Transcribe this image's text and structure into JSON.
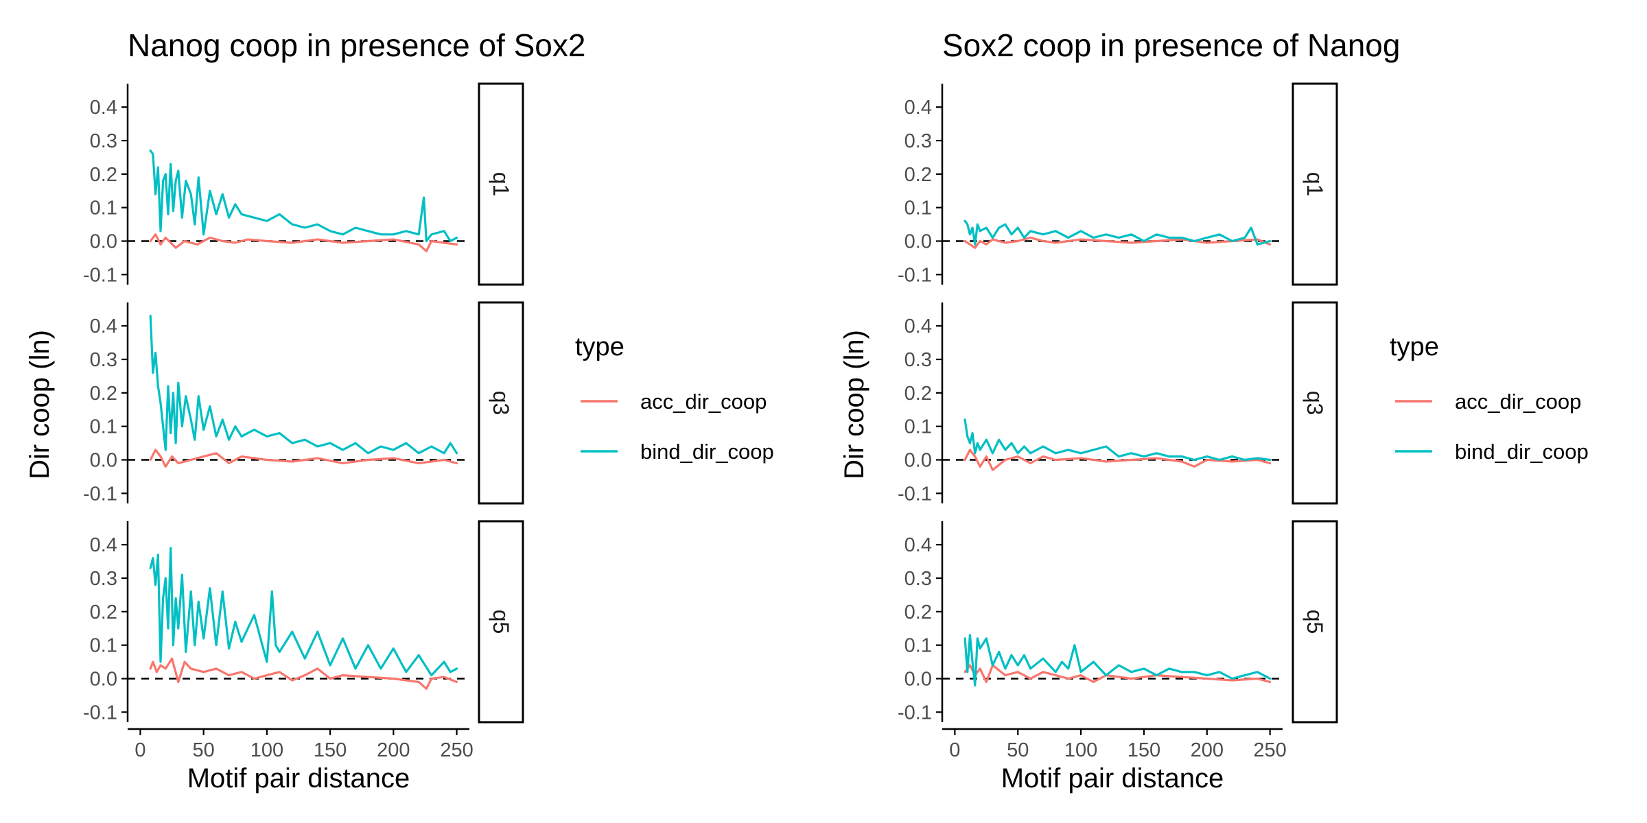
{
  "colors": {
    "acc_dir_coop": "#F8766D",
    "bind_dir_coop": "#00BFC4",
    "axis": "#000000",
    "tick_label": "#4d4d4d"
  },
  "chart_data": [
    {
      "type": "line",
      "title": "Nanog coop in presence of Sox2",
      "xlabel": "Motif pair distance",
      "ylabel": "Dir coop (ln)",
      "xlim": [
        -10,
        260
      ],
      "ylim": [
        -0.13,
        0.47
      ],
      "xticks": [
        "0",
        "50",
        "100",
        "150",
        "200",
        "250"
      ],
      "yticks": [
        "-0.1",
        "0.0",
        "0.1",
        "0.2",
        "0.3",
        "0.4"
      ],
      "reference_line": {
        "y": 0,
        "style": "dashed"
      },
      "grid": false,
      "legend": {
        "title": "type",
        "position": "right",
        "entries": [
          "acc_dir_coop",
          "bind_dir_coop"
        ]
      },
      "panels": [
        {
          "label": "q1",
          "series": [
            {
              "name": "acc_dir_coop",
              "x": [
                8,
                12,
                16,
                20,
                28,
                35,
                45,
                55,
                65,
                75,
                85,
                100,
                120,
                140,
                160,
                180,
                200,
                220,
                226,
                230,
                240,
                250
              ],
              "y": [
                0.0,
                0.02,
                -0.01,
                0.01,
                -0.02,
                0.0,
                -0.01,
                0.01,
                0.0,
                -0.005,
                0.005,
                0.0,
                -0.005,
                0.005,
                -0.005,
                0.0,
                0.005,
                -0.01,
                -0.03,
                0.0,
                -0.005,
                -0.01
              ]
            },
            {
              "name": "bind_dir_coop",
              "x": [
                8,
                10,
                12,
                14,
                16,
                18,
                20,
                22,
                24,
                26,
                28,
                30,
                33,
                36,
                40,
                43,
                46,
                50,
                55,
                60,
                65,
                70,
                75,
                80,
                90,
                100,
                110,
                120,
                130,
                140,
                150,
                160,
                170,
                180,
                190,
                200,
                210,
                220,
                224,
                226,
                230,
                240,
                245,
                250
              ],
              "y": [
                0.27,
                0.26,
                0.14,
                0.22,
                0.03,
                0.18,
                0.2,
                0.08,
                0.23,
                0.09,
                0.18,
                0.21,
                0.07,
                0.18,
                0.14,
                0.05,
                0.19,
                0.02,
                0.15,
                0.08,
                0.14,
                0.07,
                0.11,
                0.08,
                0.07,
                0.06,
                0.08,
                0.05,
                0.04,
                0.05,
                0.03,
                0.02,
                0.04,
                0.03,
                0.02,
                0.02,
                0.03,
                0.02,
                0.13,
                0.0,
                0.02,
                0.03,
                0.0,
                0.01
              ]
            }
          ]
        },
        {
          "label": "q3",
          "series": [
            {
              "name": "acc_dir_coop",
              "x": [
                8,
                12,
                16,
                20,
                25,
                30,
                40,
                50,
                60,
                70,
                80,
                100,
                120,
                140,
                160,
                180,
                200,
                220,
                240,
                250
              ],
              "y": [
                0.0,
                0.03,
                0.01,
                -0.02,
                0.01,
                -0.01,
                0.0,
                0.01,
                0.02,
                -0.01,
                0.01,
                0.0,
                -0.005,
                0.005,
                -0.01,
                0.0,
                0.005,
                -0.01,
                0.0,
                -0.01
              ]
            },
            {
              "name": "bind_dir_coop",
              "x": [
                8,
                10,
                12,
                14,
                16,
                18,
                20,
                22,
                24,
                26,
                28,
                30,
                33,
                36,
                40,
                43,
                46,
                50,
                55,
                60,
                65,
                70,
                75,
                80,
                90,
                100,
                110,
                120,
                130,
                140,
                150,
                160,
                170,
                180,
                190,
                200,
                210,
                220,
                230,
                240,
                245,
                250
              ],
              "y": [
                0.43,
                0.26,
                0.32,
                0.22,
                0.17,
                0.1,
                0.03,
                0.22,
                0.08,
                0.2,
                0.05,
                0.23,
                0.1,
                0.19,
                0.12,
                0.06,
                0.19,
                0.09,
                0.16,
                0.07,
                0.12,
                0.06,
                0.1,
                0.07,
                0.09,
                0.07,
                0.08,
                0.05,
                0.06,
                0.04,
                0.05,
                0.03,
                0.05,
                0.02,
                0.04,
                0.03,
                0.05,
                0.02,
                0.04,
                0.02,
                0.05,
                0.02
              ]
            }
          ]
        },
        {
          "label": "q5",
          "series": [
            {
              "name": "acc_dir_coop",
              "x": [
                8,
                10,
                13,
                16,
                20,
                25,
                30,
                35,
                40,
                50,
                60,
                70,
                80,
                90,
                100,
                110,
                120,
                130,
                140,
                150,
                160,
                180,
                200,
                220,
                226,
                230,
                240,
                250
              ],
              "y": [
                0.03,
                0.05,
                0.02,
                0.04,
                0.03,
                0.06,
                -0.01,
                0.05,
                0.03,
                0.02,
                0.03,
                0.01,
                0.02,
                0.0,
                0.01,
                0.02,
                -0.005,
                0.01,
                0.03,
                0.0,
                0.01,
                0.005,
                0.0,
                -0.01,
                -0.03,
                0.0,
                0.005,
                -0.01
              ]
            },
            {
              "name": "bind_dir_coop",
              "x": [
                8,
                10,
                12,
                14,
                16,
                18,
                20,
                22,
                24,
                26,
                28,
                30,
                33,
                36,
                40,
                43,
                46,
                50,
                55,
                60,
                65,
                70,
                75,
                80,
                90,
                100,
                104,
                107,
                110,
                120,
                130,
                140,
                150,
                160,
                170,
                180,
                190,
                200,
                210,
                220,
                230,
                240,
                245,
                250
              ],
              "y": [
                0.33,
                0.36,
                0.28,
                0.37,
                0.05,
                0.24,
                0.3,
                0.15,
                0.39,
                0.1,
                0.24,
                0.15,
                0.31,
                0.08,
                0.26,
                0.1,
                0.23,
                0.12,
                0.27,
                0.1,
                0.26,
                0.09,
                0.17,
                0.11,
                0.19,
                0.05,
                0.26,
                0.1,
                0.08,
                0.14,
                0.06,
                0.14,
                0.04,
                0.12,
                0.03,
                0.1,
                0.03,
                0.09,
                0.02,
                0.07,
                0.01,
                0.05,
                0.02,
                0.03
              ]
            }
          ]
        }
      ]
    },
    {
      "type": "line",
      "title": "Sox2 coop in presence of Nanog",
      "xlabel": "Motif pair distance",
      "ylabel": "Dir coop (ln)",
      "xlim": [
        -10,
        260
      ],
      "ylim": [
        -0.13,
        0.47
      ],
      "xticks": [
        "0",
        "50",
        "100",
        "150",
        "200",
        "250"
      ],
      "yticks": [
        "-0.1",
        "0.0",
        "0.1",
        "0.2",
        "0.3",
        "0.4"
      ],
      "reference_line": {
        "y": 0,
        "style": "dashed"
      },
      "grid": false,
      "legend": {
        "title": "type",
        "position": "right",
        "entries": [
          "acc_dir_coop",
          "bind_dir_coop"
        ]
      },
      "panels": [
        {
          "label": "q1",
          "series": [
            {
              "name": "acc_dir_coop",
              "x": [
                8,
                12,
                16,
                20,
                25,
                30,
                40,
                50,
                60,
                70,
                80,
                100,
                120,
                140,
                160,
                180,
                200,
                220,
                240,
                250
              ],
              "y": [
                0.0,
                -0.01,
                -0.02,
                0.0,
                -0.01,
                0.005,
                -0.005,
                0.0,
                0.01,
                0.0,
                -0.005,
                0.005,
                0.0,
                -0.005,
                0.0,
                0.005,
                -0.005,
                0.0,
                0.005,
                -0.01
              ]
            },
            {
              "name": "bind_dir_coop",
              "x": [
                8,
                10,
                12,
                14,
                16,
                18,
                20,
                25,
                30,
                35,
                40,
                45,
                50,
                55,
                60,
                70,
                80,
                90,
                100,
                110,
                120,
                130,
                140,
                150,
                160,
                170,
                180,
                190,
                200,
                210,
                220,
                230,
                235,
                240,
                250
              ],
              "y": [
                0.06,
                0.05,
                0.02,
                0.04,
                -0.01,
                0.05,
                0.03,
                0.04,
                0.01,
                0.04,
                0.05,
                0.02,
                0.04,
                0.01,
                0.03,
                0.02,
                0.03,
                0.01,
                0.03,
                0.01,
                0.02,
                0.01,
                0.02,
                0.0,
                0.02,
                0.01,
                0.01,
                0.0,
                0.01,
                0.02,
                0.0,
                0.01,
                0.04,
                -0.01,
                0.0
              ]
            }
          ]
        },
        {
          "label": "q3",
          "series": [
            {
              "name": "acc_dir_coop",
              "x": [
                8,
                12,
                16,
                20,
                25,
                30,
                40,
                50,
                60,
                70,
                80,
                100,
                120,
                140,
                160,
                180,
                190,
                200,
                220,
                240,
                250
              ],
              "y": [
                0.0,
                0.03,
                0.01,
                -0.02,
                0.01,
                -0.03,
                0.0,
                0.01,
                -0.01,
                0.01,
                0.0,
                0.005,
                -0.005,
                0.0,
                0.005,
                -0.005,
                -0.02,
                0.0,
                -0.005,
                0.0,
                -0.01
              ]
            },
            {
              "name": "bind_dir_coop",
              "x": [
                8,
                10,
                12,
                14,
                16,
                18,
                20,
                25,
                30,
                35,
                40,
                45,
                50,
                55,
                60,
                70,
                80,
                90,
                100,
                110,
                120,
                130,
                140,
                150,
                160,
                170,
                180,
                190,
                200,
                210,
                220,
                230,
                240,
                250
              ],
              "y": [
                0.12,
                0.07,
                0.05,
                0.08,
                0.02,
                0.05,
                0.03,
                0.06,
                0.02,
                0.06,
                0.03,
                0.05,
                0.02,
                0.04,
                0.02,
                0.04,
                0.02,
                0.03,
                0.02,
                0.03,
                0.04,
                0.01,
                0.02,
                0.01,
                0.02,
                0.01,
                0.01,
                0.0,
                0.01,
                0.0,
                0.01,
                0.0,
                0.005,
                0.0
              ]
            }
          ]
        },
        {
          "label": "q5",
          "series": [
            {
              "name": "acc_dir_coop",
              "x": [
                8,
                12,
                16,
                20,
                25,
                30,
                40,
                50,
                60,
                70,
                80,
                90,
                100,
                110,
                120,
                140,
                160,
                180,
                200,
                220,
                240,
                250
              ],
              "y": [
                0.02,
                0.04,
                0.01,
                0.03,
                -0.01,
                0.04,
                0.01,
                0.02,
                0.0,
                0.02,
                0.01,
                0.0,
                0.01,
                -0.01,
                0.01,
                0.0,
                0.01,
                0.005,
                0.0,
                -0.005,
                0.0,
                -0.01
              ]
            },
            {
              "name": "bind_dir_coop",
              "x": [
                8,
                10,
                12,
                14,
                16,
                18,
                20,
                25,
                30,
                35,
                40,
                45,
                50,
                55,
                60,
                70,
                80,
                85,
                90,
                95,
                100,
                110,
                120,
                130,
                140,
                150,
                160,
                170,
                180,
                190,
                200,
                210,
                220,
                230,
                240,
                250
              ],
              "y": [
                0.12,
                0.02,
                0.13,
                0.05,
                -0.02,
                0.12,
                0.09,
                0.12,
                0.04,
                0.08,
                0.03,
                0.07,
                0.04,
                0.07,
                0.03,
                0.06,
                0.02,
                0.05,
                0.03,
                0.1,
                0.02,
                0.05,
                0.01,
                0.04,
                0.02,
                0.03,
                0.01,
                0.03,
                0.02,
                0.02,
                0.01,
                0.02,
                0.0,
                0.01,
                0.02,
                0.0
              ]
            }
          ]
        }
      ]
    }
  ]
}
